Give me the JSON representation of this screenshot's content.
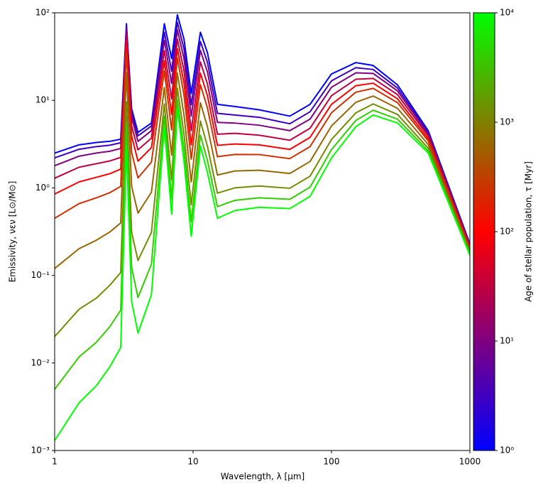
{
  "chart_data": {
    "type": "line",
    "xlabel": "Wavelength, λ [μm]",
    "ylabel": "Emissivity, νεν [L⊙/M⊙]",
    "xscale": "log",
    "yscale": "log",
    "xlim": [
      1,
      1000
    ],
    "ylim": [
      0.001,
      100
    ],
    "xticks": [
      1,
      10,
      100,
      1000
    ],
    "yticks": [
      {
        "value": 0.001,
        "label": "10⁻³"
      },
      {
        "value": 0.01,
        "label": "10⁻²"
      },
      {
        "value": 0.1,
        "label": "10⁻¹"
      },
      {
        "value": 1,
        "label": "10⁰"
      },
      {
        "value": 10,
        "label": "10¹"
      },
      {
        "value": 100,
        "label": "10²"
      }
    ],
    "x": [
      1,
      1.5,
      2,
      2.5,
      3,
      3.3,
      3.6,
      4,
      5,
      6.2,
      7,
      7.7,
      8.6,
      9.7,
      11.3,
      12.7,
      15,
      20,
      30,
      50,
      70,
      100,
      150,
      200,
      300,
      500,
      1000
    ],
    "series": [
      {
        "color": "#0000ff",
        "values": [
          2.5,
          3.1,
          3.3,
          3.4,
          3.6,
          75,
          8,
          4.3,
          5.5,
          75,
          30,
          95,
          50,
          12,
          60,
          35,
          9,
          8.5,
          7.8,
          6.6,
          9,
          20,
          27,
          25,
          15,
          4.5,
          0.23
        ]
      },
      {
        "color": "#4000bf",
        "values": [
          2.2,
          2.76,
          2.96,
          3.07,
          3.28,
          71,
          7.3,
          3.93,
          5.09,
          60,
          21.6,
          78,
          38.6,
          8.9,
          47,
          27.2,
          7.1,
          6.8,
          6.4,
          5.4,
          7.4,
          16.7,
          23.6,
          22.5,
          13.8,
          4.3,
          0.224
        ]
      },
      {
        "color": "#800080",
        "values": [
          1.79,
          2.3,
          2.5,
          2.62,
          2.82,
          65,
          6.4,
          3.4,
          4.5,
          48.6,
          15.6,
          64,
          29.9,
          6.6,
          37.2,
          21.1,
          5.6,
          5.5,
          5.2,
          4.5,
          6.1,
          14.1,
          20.6,
          20.3,
          12.8,
          4.1,
          0.219
        ]
      },
      {
        "color": "#bf0040",
        "values": [
          1.29,
          1.72,
          1.89,
          2.03,
          2.23,
          57,
          5.1,
          2.72,
          3.7,
          37,
          10.4,
          50,
          21.7,
          4.5,
          27.5,
          15.4,
          4.1,
          4.2,
          4.0,
          3.5,
          4.8,
          11.3,
          17.4,
          17.8,
          11.6,
          3.9,
          0.213
        ]
      },
      {
        "color": "#ff0000",
        "values": [
          0.85,
          1.17,
          1.32,
          1.45,
          1.64,
          47,
          3.9,
          2.02,
          2.88,
          28.3,
          6.9,
          39,
          15.7,
          3.1,
          20.4,
          11.3,
          3.06,
          3.17,
          3.1,
          2.75,
          3.77,
          9.0,
          14.7,
          15.7,
          10.4,
          3.64,
          0.206
        ]
      },
      {
        "color": "#cc3300",
        "values": [
          0.45,
          0.66,
          0.77,
          0.88,
          1.04,
          36,
          2.53,
          1.3,
          1.97,
          21.6,
          4.6,
          30.4,
          11.4,
          2.13,
          15.1,
          8.2,
          2.27,
          2.41,
          2.4,
          2.16,
          2.96,
          7.2,
          12.4,
          13.7,
          9.4,
          3.44,
          0.2
        ]
      },
      {
        "color": "#996600",
        "values": [
          0.12,
          0.202,
          0.252,
          0.313,
          0.397,
          20.6,
          1.04,
          0.515,
          0.89,
          14,
          2.37,
          20.5,
          6.8,
          1.17,
          9.4,
          5.0,
          1.4,
          1.56,
          1.59,
          1.46,
          2.0,
          5.1,
          9.5,
          11.2,
          8.1,
          3.13,
          0.19
        ]
      },
      {
        "color": "#738c00",
        "values": [
          0.02,
          0.041,
          0.055,
          0.077,
          0.108,
          9.6,
          0.31,
          0.148,
          0.31,
          9.1,
          1.23,
          13.8,
          4.1,
          0.64,
          5.8,
          3.0,
          0.87,
          1.0,
          1.05,
          0.99,
          1.36,
          3.57,
          7.2,
          9.1,
          6.9,
          2.84,
          0.18
        ]
      },
      {
        "color": "#33cc00",
        "values": [
          0.005,
          0.0117,
          0.0172,
          0.0259,
          0.04,
          5.3,
          0.123,
          0.056,
          0.134,
          6.6,
          0.75,
          10.2,
          2.76,
          0.41,
          4.0,
          2.06,
          0.61,
          0.72,
          0.77,
          0.74,
          1.02,
          2.74,
          5.9,
          7.7,
          6.1,
          2.65,
          0.175
        ]
      },
      {
        "color": "#00ff00",
        "values": [
          0.0013,
          0.0035,
          0.0055,
          0.009,
          0.015,
          3,
          0.05,
          0.022,
          0.06,
          5,
          0.5,
          8,
          2,
          0.28,
          3,
          1.5,
          0.45,
          0.55,
          0.6,
          0.58,
          0.8,
          2.2,
          5,
          6.8,
          5.5,
          2.5,
          0.17
        ]
      }
    ],
    "colorbar": {
      "label": "Age of stellar population, τ [Myr]",
      "scale": "log",
      "lim": [
        1,
        10000
      ],
      "ticks": [
        {
          "value": 1,
          "label": "10⁰"
        },
        {
          "value": 10,
          "label": "10¹"
        },
        {
          "value": 100,
          "label": "10²"
        },
        {
          "value": 1000,
          "label": "10³"
        },
        {
          "value": 10000,
          "label": "10⁴"
        }
      ],
      "colors": [
        "#0000ff",
        "#ff0000",
        "#00ff00"
      ]
    }
  }
}
